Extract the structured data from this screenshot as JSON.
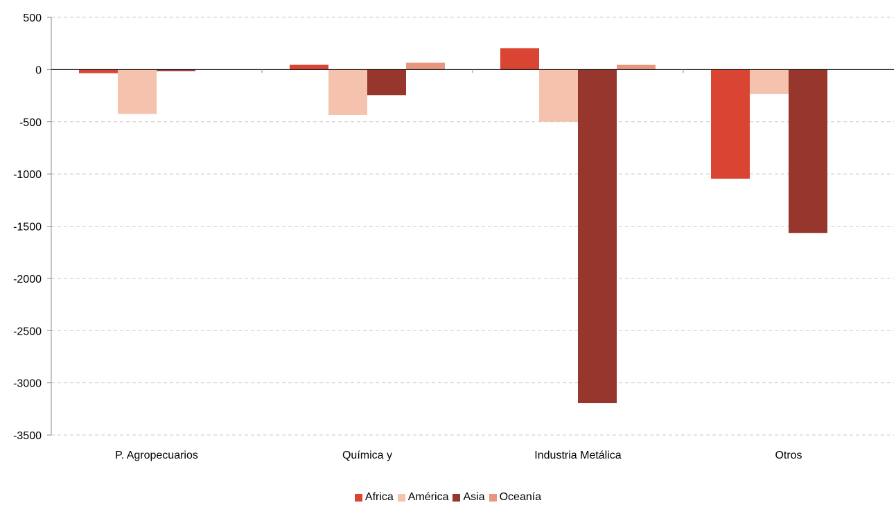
{
  "chart_data": {
    "type": "bar",
    "categories": [
      "P. Agropecuarios",
      "Química y",
      "Industria Metálica",
      "Otros"
    ],
    "series": [
      {
        "name": "Africa",
        "color": "#d94532",
        "values": [
          -35,
          45,
          205,
          -1045
        ]
      },
      {
        "name": "América",
        "color": "#f4c2ad",
        "values": [
          -425,
          -435,
          -500,
          -235
        ]
      },
      {
        "name": "Asia",
        "color": "#97362d",
        "values": [
          -15,
          -245,
          -3195,
          -1565
        ]
      },
      {
        "name": "Oceanía",
        "color": "#e8967e",
        "values": [
          0,
          65,
          45,
          0
        ]
      }
    ],
    "ylim": [
      -3500,
      500
    ],
    "yticks": [
      500,
      0,
      -500,
      -1000,
      -1500,
      -2000,
      -2500,
      -3000,
      -3500
    ],
    "grid": true,
    "legend_position": "bottom"
  }
}
